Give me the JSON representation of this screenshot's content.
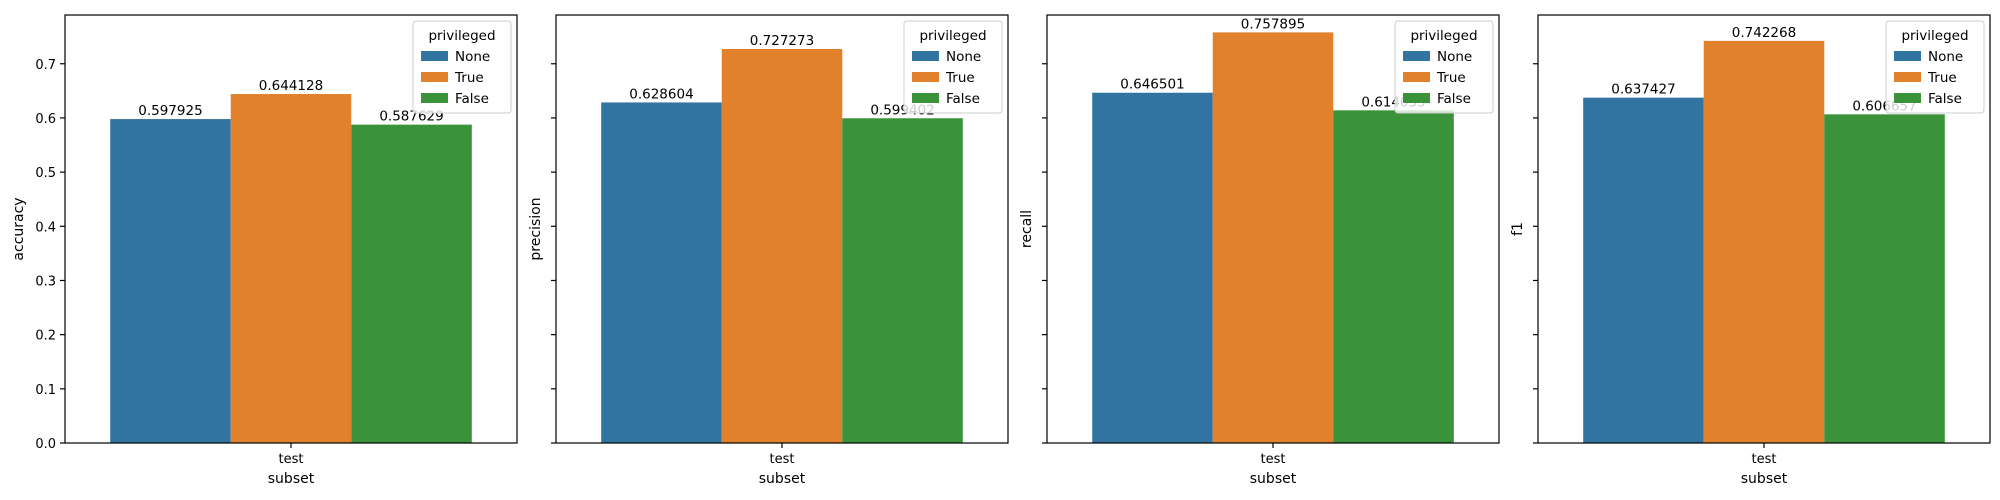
{
  "chart_data": [
    {
      "type": "bar",
      "categories": [
        "test"
      ],
      "xlabel": "subset",
      "ylabel": "accuracy",
      "ylim": [
        0,
        0.79
      ],
      "yticks": [
        0.0,
        0.1,
        0.2,
        0.3,
        0.4,
        0.5,
        0.6,
        0.7
      ],
      "show_ytick_labels": true,
      "legend": {
        "title": "privileged",
        "placement": "upper right"
      },
      "series": [
        {
          "name": "None",
          "values": [
            0.597925
          ],
          "label": "0.597925"
        },
        {
          "name": "True",
          "values": [
            0.644128
          ],
          "label": "0.644128"
        },
        {
          "name": "False",
          "values": [
            0.587629
          ],
          "label": "0.587629"
        }
      ]
    },
    {
      "type": "bar",
      "categories": [
        "test"
      ],
      "xlabel": "subset",
      "ylabel": "precision",
      "ylim": [
        0,
        0.79
      ],
      "yticks": [
        0.0,
        0.1,
        0.2,
        0.3,
        0.4,
        0.5,
        0.6,
        0.7
      ],
      "show_ytick_labels": false,
      "legend": {
        "title": "privileged",
        "placement": "upper right"
      },
      "series": [
        {
          "name": "None",
          "values": [
            0.628604
          ],
          "label": "0.628604"
        },
        {
          "name": "True",
          "values": [
            0.727273
          ],
          "label": "0.727273"
        },
        {
          "name": "False",
          "values": [
            0.599402
          ],
          "label": "0.599402"
        }
      ]
    },
    {
      "type": "bar",
      "categories": [
        "test"
      ],
      "xlabel": "subset",
      "ylabel": "recall",
      "ylim": [
        0,
        0.79
      ],
      "yticks": [
        0.0,
        0.1,
        0.2,
        0.3,
        0.4,
        0.5,
        0.6,
        0.7
      ],
      "show_ytick_labels": false,
      "legend": {
        "title": "privileged",
        "placement": "upper right"
      },
      "series": [
        {
          "name": "None",
          "values": [
            0.646501
          ],
          "label": "0.646501"
        },
        {
          "name": "True",
          "values": [
            0.757895
          ],
          "label": "0.757895"
        },
        {
          "name": "False",
          "values": [
            0.614035
          ],
          "label": "0.614035"
        }
      ]
    },
    {
      "type": "bar",
      "categories": [
        "test"
      ],
      "xlabel": "subset",
      "ylabel": "f1",
      "ylim": [
        0,
        0.79
      ],
      "yticks": [
        0.0,
        0.1,
        0.2,
        0.3,
        0.4,
        0.5,
        0.6,
        0.7
      ],
      "show_ytick_labels": false,
      "legend": {
        "title": "privileged",
        "placement": "upper right"
      },
      "series": [
        {
          "name": "None",
          "values": [
            0.637427
          ],
          "label": "0.637427"
        },
        {
          "name": "True",
          "values": [
            0.742268
          ],
          "label": "0.742268"
        },
        {
          "name": "False",
          "values": [
            0.606657
          ],
          "label": "0.606657"
        }
      ]
    }
  ],
  "colors": {
    "None": "#3274a1",
    "True": "#e1812c",
    "False": "#3a923a"
  }
}
